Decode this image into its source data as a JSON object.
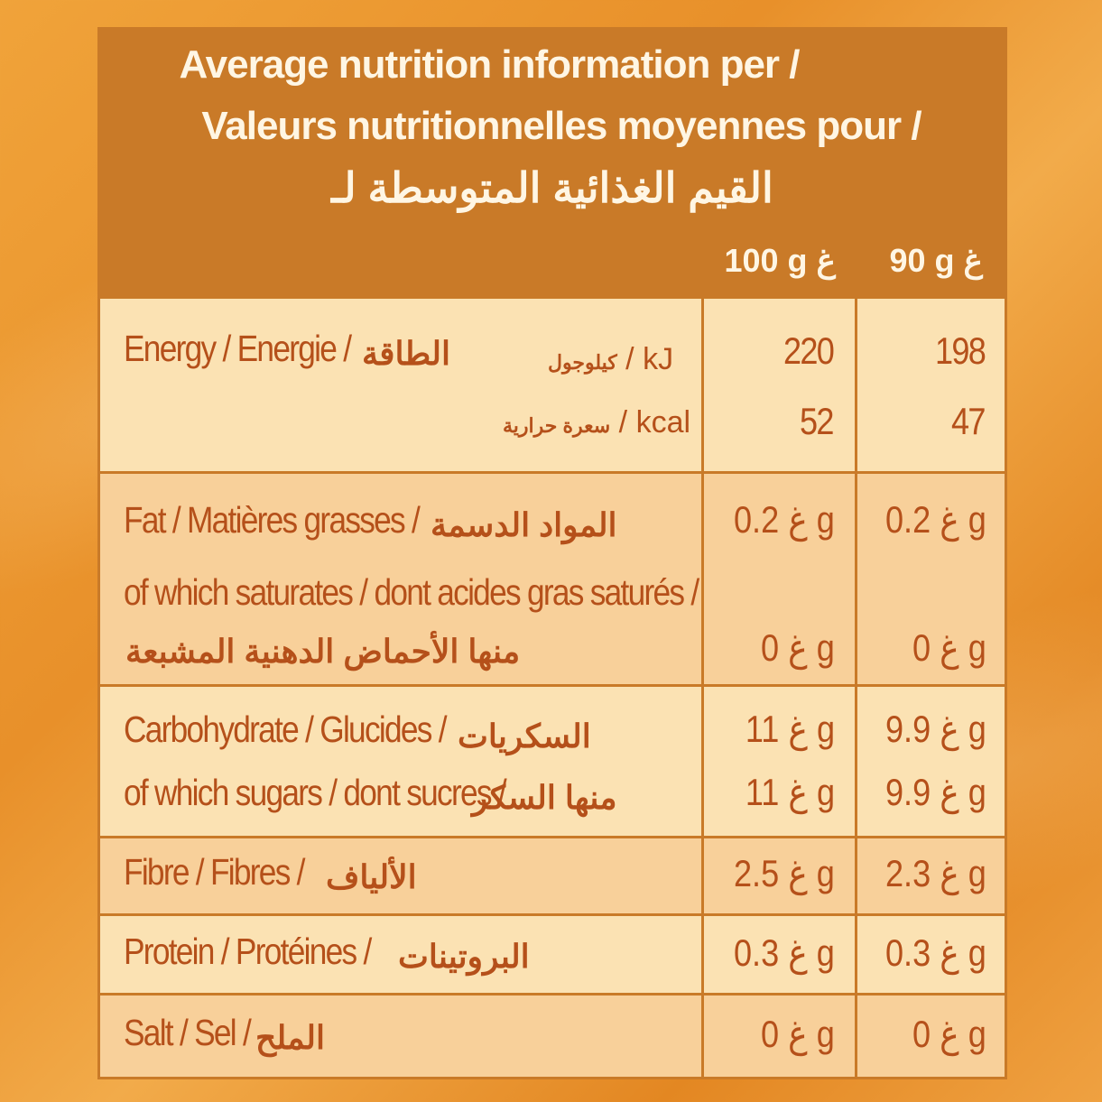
{
  "header": {
    "line_en": "Average nutrition information per /",
    "line_fr": "Valeurs nutritionnelles moyennes  pour /",
    "line_ar": "القيم الغذائية المتوسطة لـ",
    "col_100": "100 g غ",
    "col_90": "90 g غ"
  },
  "rows": {
    "energy": {
      "label_en": "Energy / Energie /",
      "label_ar": "الطاقة",
      "kj_unit": "/ kJ",
      "kj_unit_ar": "كيلوجول",
      "kcal_unit": "/ kcal",
      "kcal_unit_ar": "سعرة حرارية",
      "kj_100": "220",
      "kj_90": "198",
      "kcal_100": "52",
      "kcal_90": "47"
    },
    "fat": {
      "label_en": "Fat / Matières grasses /",
      "label_ar": "المواد الدسمة",
      "sat_label": "of which saturates / dont acides gras saturés /",
      "sat_label_ar": "منها الأحماض الدهنية المشبعة",
      "v100": "غ 0.2 g",
      "v90": "غ 0.2 g",
      "sat_100": "غ 0 g",
      "sat_90": "غ 0 g"
    },
    "carb": {
      "label_en": "Carbohydrate / Glucides /",
      "label_ar": "السكريات",
      "sug_label": "of which sugars / dont sucres /",
      "sug_label_ar": "منها السكر",
      "v100": "غ 11 g",
      "v90": "غ 9.9 g",
      "sug_100": "غ 11 g",
      "sug_90": "غ 9.9 g"
    },
    "fibre": {
      "label_en": "Fibre / Fibres /",
      "label_ar": "الألياف",
      "v100": "غ 2.5 g",
      "v90": "غ 2.3 g"
    },
    "protein": {
      "label_en": "Protein / Protéines /",
      "label_ar": "البروتينات",
      "v100": "غ 0.3 g",
      "v90": "غ 0.3 g"
    },
    "salt": {
      "label_en": "Salt / Sel /",
      "label_ar": "الملح",
      "v100": "غ 0 g",
      "v90": "غ 0 g"
    }
  }
}
